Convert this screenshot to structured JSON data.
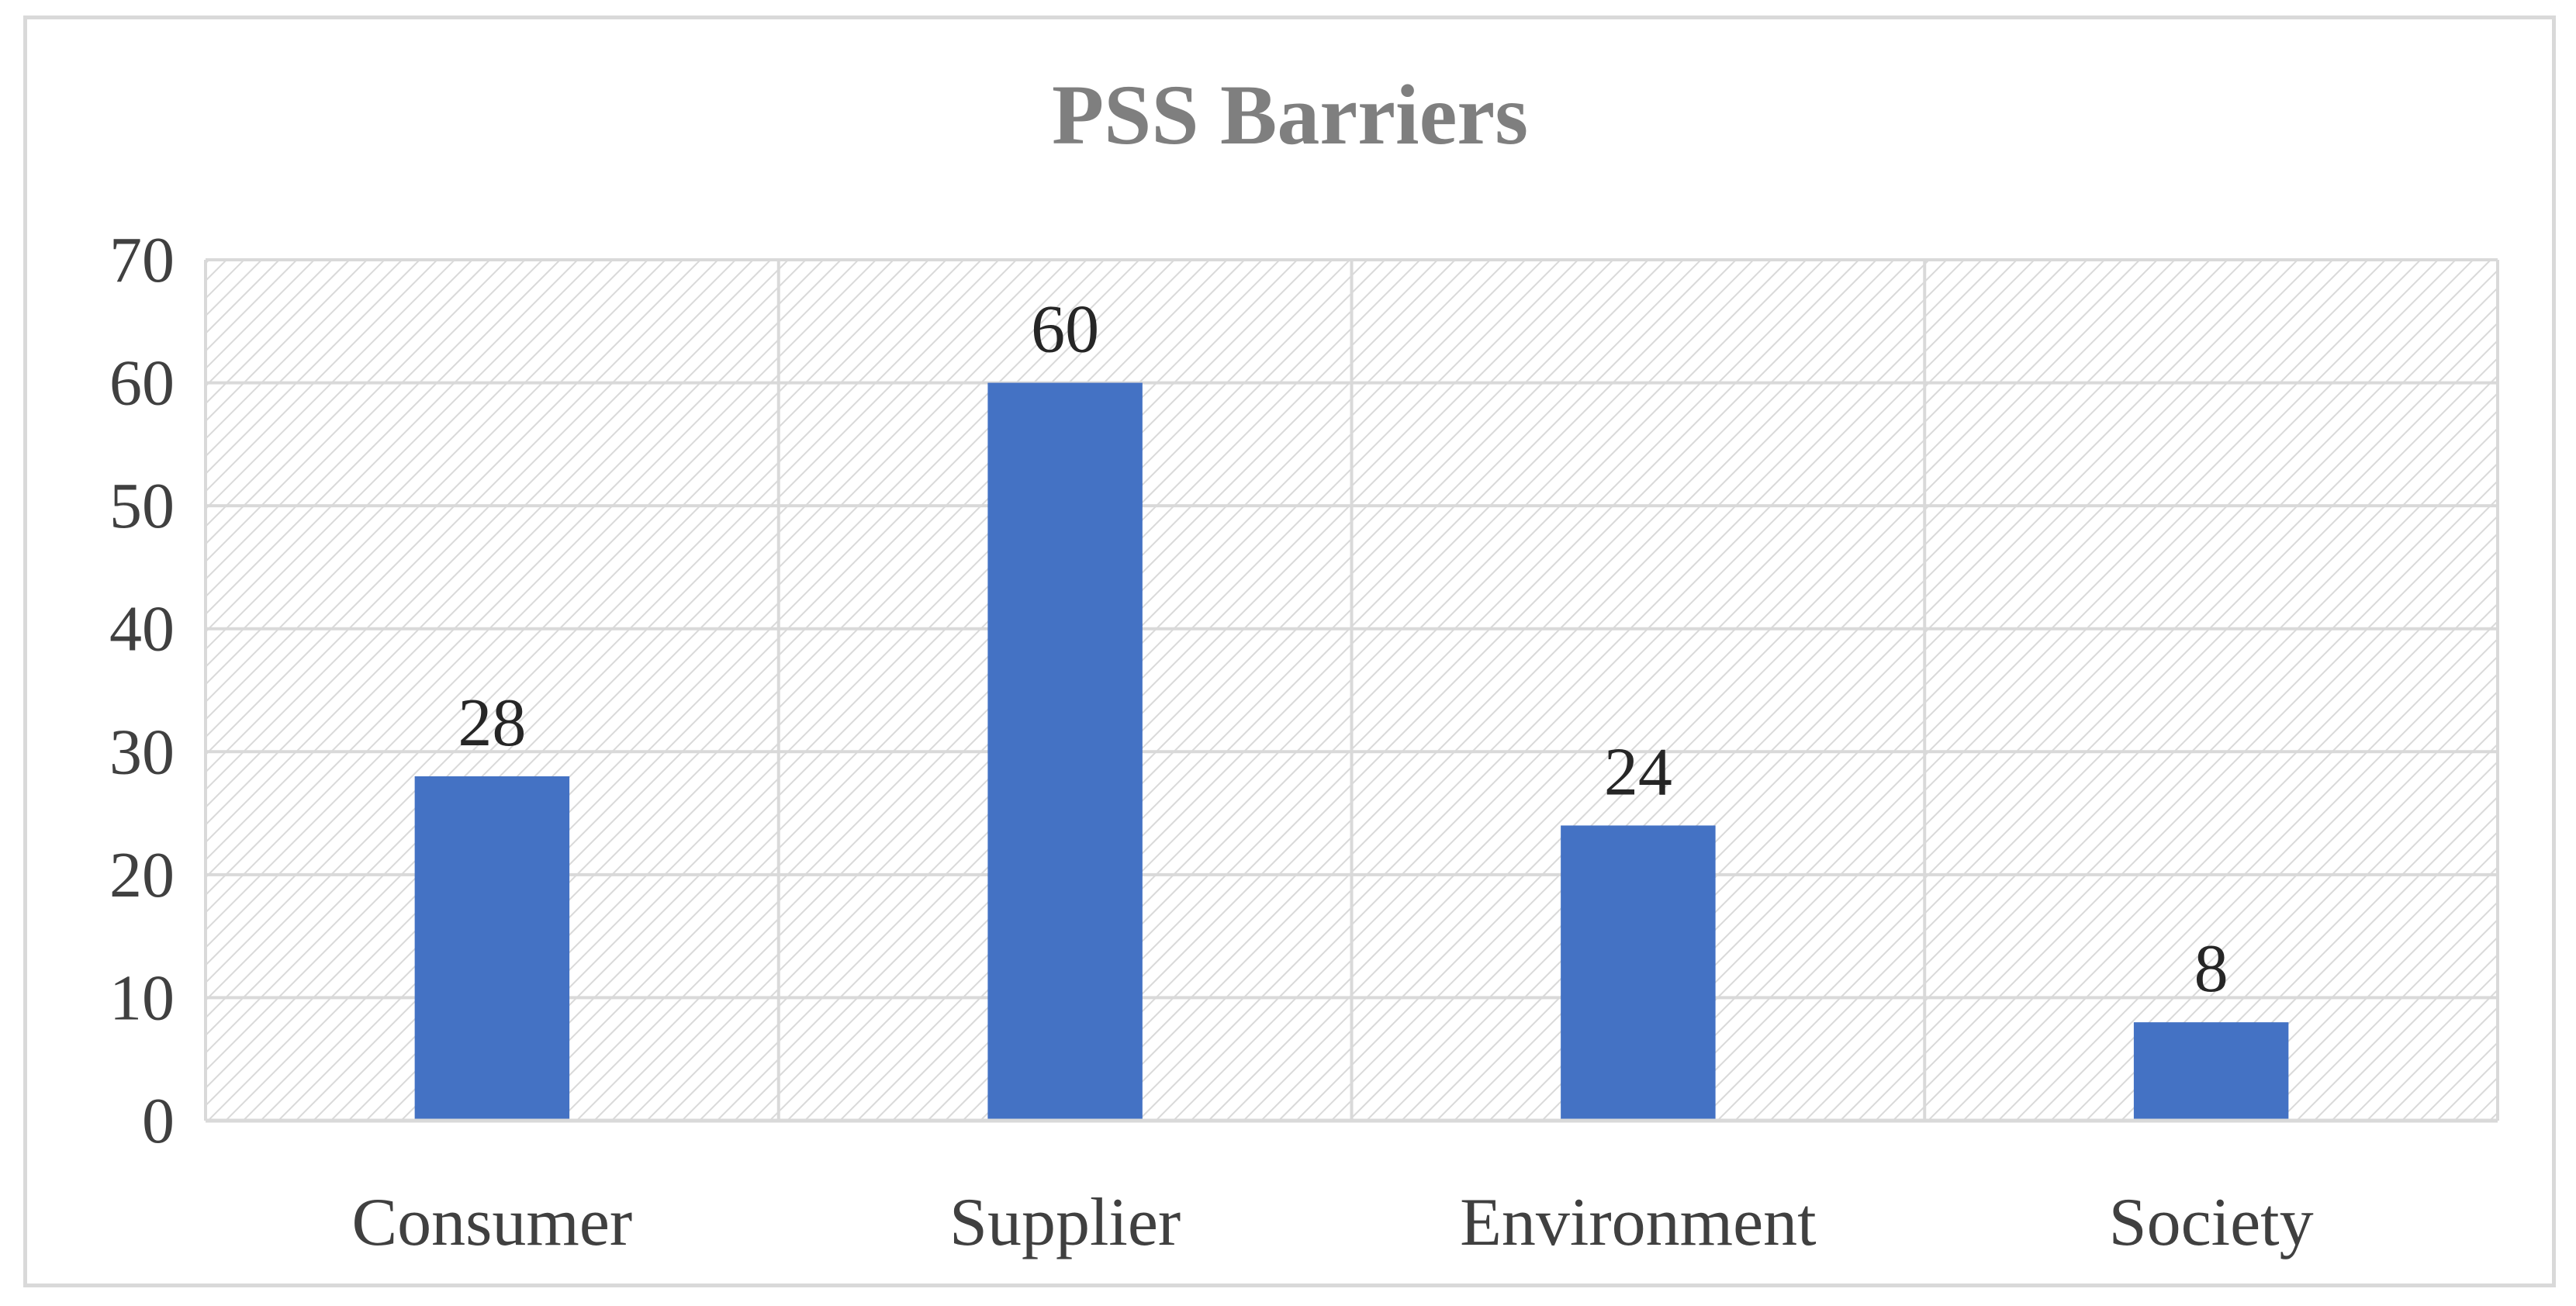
{
  "chart_data": {
    "type": "bar",
    "title": "PSS Barriers",
    "categories": [
      "Consumer",
      "Supplier",
      "Environment",
      "Society"
    ],
    "values": [
      28,
      60,
      24,
      8
    ],
    "data_labels": [
      "28",
      "60",
      "24",
      "8"
    ],
    "xlabel": "",
    "ylabel": "",
    "ylim": [
      0,
      70
    ],
    "yticks": [
      0,
      10,
      20,
      30,
      40,
      50,
      60,
      70
    ],
    "ytick_labels": [
      "0",
      "10",
      "20",
      "30",
      "40",
      "50",
      "60",
      "70"
    ],
    "grid": true,
    "plot_area_pattern": "diagonal-hatch",
    "legend": "none",
    "colors": {
      "bar": "#4472C4",
      "grid": "#d9d9d9",
      "hatch": "#d9d9d9",
      "title": "#7f7f7f",
      "text": "#404040"
    }
  }
}
